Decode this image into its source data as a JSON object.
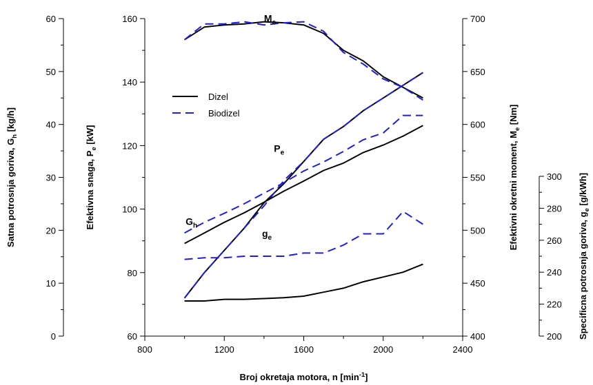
{
  "chart_data": {
    "type": "line",
    "x": [
      1000,
      1100,
      1200,
      1300,
      1400,
      1500,
      1600,
      1700,
      1800,
      1900,
      2000,
      2100,
      2200
    ],
    "xlim": [
      800,
      2400
    ],
    "xticks": [
      "800",
      "1200",
      "1600",
      "2000",
      "2400"
    ],
    "xlabel": {
      "main": "Broj okretaja motora, n [min",
      "sup": "-1",
      "end": "]"
    },
    "axes": {
      "pe": {
        "label": {
          "main": "Efektivna snaga, P",
          "sub": "e",
          "end": " [kW]"
        },
        "ylim": [
          60,
          160
        ],
        "ticks": [
          "60",
          "80",
          "100",
          "120",
          "140",
          "160"
        ]
      },
      "gh": {
        "label": {
          "main": "Satna potrosnja goriva, G",
          "sub": "h",
          "end": " [kg/h]"
        },
        "ylim": [
          0,
          60
        ],
        "ticks": [
          "0",
          "10",
          "20",
          "30",
          "40",
          "50",
          "60"
        ]
      },
      "me": {
        "label": {
          "main": "Efektivni okretni moment, M",
          "sub": "e",
          "end": " [Nm]"
        },
        "ylim": [
          400,
          700
        ],
        "ticks": [
          "400",
          "450",
          "500",
          "550",
          "600",
          "650",
          "700"
        ]
      },
      "ge": {
        "label": {
          "main": "Specificna potrosnja goriva, g",
          "sub": "e",
          "end": " [g/kWh]"
        },
        "ylim": [
          200,
          300
        ],
        "ticks": [
          "200",
          "220",
          "240",
          "260",
          "280",
          "300"
        ]
      }
    },
    "legend": {
      "position": "upper-left",
      "entries": [
        {
          "label": "Dizel",
          "style": "solid",
          "color": "#000000"
        },
        {
          "label": "Biodizel",
          "style": "dashed",
          "color": "#1f1fd0"
        }
      ]
    },
    "series": [
      {
        "fuel": "Dizel",
        "quantity": "Me",
        "axis": "me",
        "values": [
          680,
          692,
          694,
          695,
          697,
          696,
          694,
          686,
          670,
          660,
          645,
          635,
          625
        ]
      },
      {
        "fuel": "Biodizel",
        "quantity": "Me",
        "axis": "me",
        "values": [
          680,
          695,
          695,
          697,
          694,
          696,
          697,
          688,
          668,
          657,
          643,
          635,
          623
        ]
      },
      {
        "fuel": "Dizel",
        "quantity": "Pe",
        "axis": "pe",
        "values": [
          72,
          80,
          87,
          94,
          102,
          108,
          115,
          122,
          126,
          131,
          135,
          139,
          143
        ]
      },
      {
        "fuel": "Biodizel",
        "quantity": "Pe",
        "axis": "pe",
        "values": [
          72,
          80,
          87,
          94,
          101,
          109,
          115,
          122,
          126,
          131,
          135,
          139,
          143
        ]
      },
      {
        "fuel": "Dizel",
        "quantity": "Gh",
        "axis": "gh",
        "values": [
          17.5,
          19.5,
          21.5,
          23.3,
          25.3,
          27.4,
          29.3,
          31.3,
          32.7,
          34.7,
          36.1,
          37.8,
          39.8
        ]
      },
      {
        "fuel": "Biodizel",
        "quantity": "Gh",
        "axis": "gh",
        "values": [
          19.5,
          21.5,
          23.2,
          25.0,
          27.0,
          29.0,
          31.2,
          32.9,
          34.9,
          37.1,
          38.4,
          41.7,
          41.7
        ]
      },
      {
        "fuel": "Dizel",
        "quantity": "ge",
        "axis": "ge",
        "values": [
          222,
          222,
          223,
          223,
          223.5,
          224,
          225,
          227.5,
          230,
          234,
          237,
          240,
          245
        ]
      },
      {
        "fuel": "Biodizel",
        "quantity": "ge",
        "axis": "ge",
        "values": [
          248,
          249,
          249,
          250,
          250,
          250,
          252,
          252,
          257,
          264,
          264,
          278,
          270
        ]
      }
    ],
    "annotations": [
      {
        "text": "M",
        "sub": "e",
        "x": 1400,
        "axis": "me",
        "y": 697
      },
      {
        "text": "P",
        "sub": "e",
        "x": 1450,
        "axis": "pe",
        "y": 118
      },
      {
        "text": "G",
        "sub": "h",
        "x": 1005,
        "axis": "gh",
        "y": 21
      },
      {
        "text": "g",
        "sub": "e",
        "x": 1390,
        "axis": "ge",
        "y": 262
      }
    ]
  }
}
